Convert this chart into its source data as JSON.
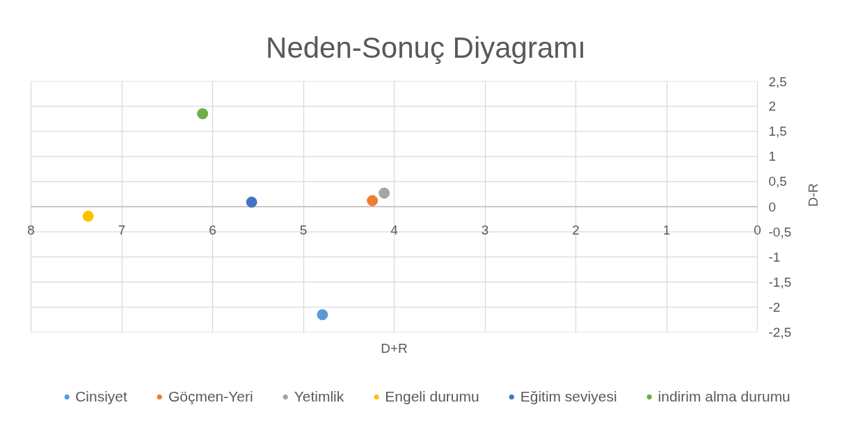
{
  "chart_data": {
    "type": "scatter",
    "title": "Neden-Sonuç Diyagramı",
    "xlabel": "D+R",
    "ylabel": "D-R",
    "xlim": [
      8,
      0
    ],
    "xticks": [
      8,
      7,
      6,
      5,
      4,
      3,
      2,
      1,
      0
    ],
    "ylim": [
      -2.5,
      2.5
    ],
    "yticks": [
      {
        "value": 2.5,
        "label": "2,5"
      },
      2,
      {
        "value": 1.5,
        "label": "1,5"
      },
      1,
      {
        "value": 0.5,
        "label": "0,5"
      },
      0,
      {
        "value": -0.5,
        "label": "-0,5"
      },
      -1,
      {
        "value": -1.5,
        "label": "-1,5"
      },
      -2,
      {
        "value": -2.5,
        "label": "-2,5"
      }
    ],
    "grid": true,
    "legend": "bottom",
    "marker": "circle",
    "series": [
      {
        "name": "Cinsiyet",
        "color": "#5b9bd5",
        "x": [
          4.79
        ],
        "values": [
          -2.15
        ]
      },
      {
        "name": "Göçmen-Yeri",
        "color": "#ed7d31",
        "x": [
          4.24
        ],
        "values": [
          0.12
        ]
      },
      {
        "name": "Yetimlik",
        "color": "#a5a5a5",
        "x": [
          4.11
        ],
        "values": [
          0.27
        ]
      },
      {
        "name": "Engeli durumu",
        "color": "#ffc000",
        "x": [
          7.37
        ],
        "values": [
          -0.19
        ]
      },
      {
        "name": "Eğitim seviyesi",
        "color": "#4472c4",
        "x": [
          5.57
        ],
        "values": [
          0.09
        ]
      },
      {
        "name": "indirim alma durumu",
        "color": "#70ad47",
        "x": [
          6.11
        ],
        "values": [
          1.85
        ]
      }
    ]
  }
}
